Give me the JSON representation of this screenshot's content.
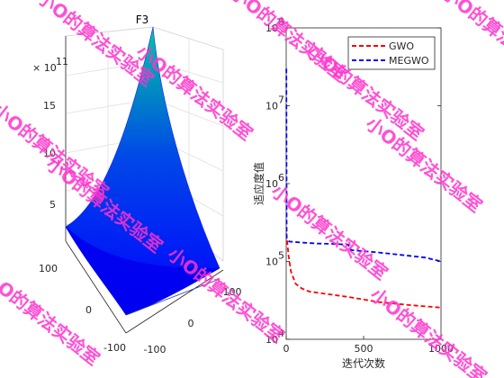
{
  "chart_data": [
    {
      "type": "surface",
      "title": "F3",
      "z_exponent_label": "× 10",
      "z_exponent": "11",
      "x_range": [
        -100,
        100
      ],
      "y_range": [
        -100,
        100
      ],
      "z_range": [
        0,
        17
      ],
      "x_ticks": [
        "-100",
        "0",
        "100"
      ],
      "y_ticks": [
        "-100",
        "0",
        "100"
      ],
      "z_ticks": [
        "5",
        "10",
        "15"
      ],
      "colormap": [
        "#0000ff",
        "#0055e0",
        "#00c8a0"
      ],
      "grid": true
    },
    {
      "type": "line",
      "title": "",
      "xlabel": "迭代次数",
      "ylabel": "适应度值",
      "xlim": [
        0,
        1000
      ],
      "ylim": [
        10000,
        100000000
      ],
      "yscale": "log",
      "x_ticks": [
        "0",
        "500",
        "1000"
      ],
      "y_tick_bases": [
        "10",
        "10",
        "10",
        "10",
        "10"
      ],
      "y_tick_exps": [
        "4",
        "5",
        "6",
        "7",
        "8"
      ],
      "legend_position": "top-right",
      "series": [
        {
          "name": "GWO",
          "color": "#ff0000",
          "points": [
            [
              1,
              230000
            ],
            [
              15,
              120000
            ],
            [
              30,
              75000
            ],
            [
              60,
              52000
            ],
            [
              100,
              45000
            ],
            [
              150,
              41000
            ],
            [
              250,
              38500
            ],
            [
              400,
              35000
            ],
            [
              600,
              30000
            ],
            [
              800,
              27500
            ],
            [
              1000,
              25500
            ]
          ]
        },
        {
          "name": "MEGWO",
          "color": "#0000ff",
          "points": [
            [
              1,
              30000000
            ],
            [
              3,
              200000
            ],
            [
              20,
              180000
            ],
            [
              100,
              175000
            ],
            [
              200,
              170000
            ],
            [
              300,
              168000
            ],
            [
              400,
              165000
            ],
            [
              420,
              140000
            ],
            [
              600,
              130000
            ],
            [
              800,
              118000
            ],
            [
              900,
              112000
            ],
            [
              1000,
              100000
            ]
          ]
        }
      ]
    }
  ],
  "watermarks": [
    "小O的算法实验室",
    "小O的算法实验室",
    "小O的算法实验室",
    "小O的算法实验室",
    "小O的算法实验室",
    "小O的算法实验室",
    "小O的算法实验室",
    "小O的算法实验室",
    "小O的算法实验室",
    "小O的算法实验室",
    "小O的算法实验室",
    "小O的算法实验室"
  ]
}
